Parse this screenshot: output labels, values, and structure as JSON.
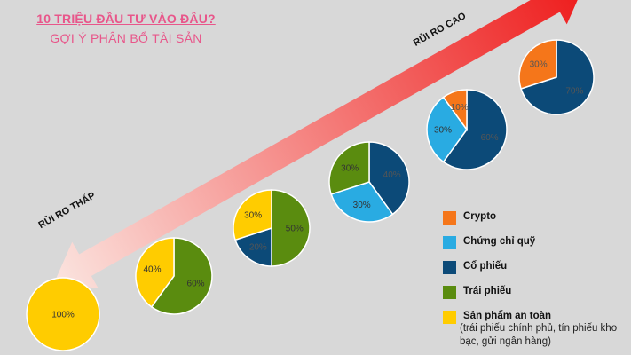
{
  "title": "10 TRIỆU ĐẦU TƯ VÀO ĐÂU?",
  "subtitle": "GỢI Ý PHÂN BỔ TÀI SẢN",
  "arrow": {
    "label_low": "RỦI RO THẤP",
    "label_high": "RỦI RO CAO",
    "color_low": "#fbe4df",
    "color_high": "#ee1b1b"
  },
  "colors": {
    "crypto": "#f5761a",
    "fund": "#29abe2",
    "stock": "#0c4a78",
    "bond": "#5a8c0f",
    "safe": "#ffcc00"
  },
  "legend": [
    {
      "key": "crypto",
      "label": "Crypto"
    },
    {
      "key": "fund",
      "label": "Chứng chỉ quỹ"
    },
    {
      "key": "stock",
      "label": "Cổ phiếu"
    },
    {
      "key": "bond",
      "label": "Trái phiếu"
    },
    {
      "key": "safe",
      "label": "Sản phẩm an toàn",
      "note": "(trái phiếu chính phủ, tín phiếu kho bạc, gửi ngân hàng)"
    }
  ],
  "chart_data": [
    {
      "type": "pie",
      "slices": [
        {
          "key": "safe",
          "value": 100,
          "label": "100%"
        }
      ]
    },
    {
      "type": "pie",
      "slices": [
        {
          "key": "bond",
          "value": 60,
          "label": "60%"
        },
        {
          "key": "safe",
          "value": 40,
          "label": "40%"
        }
      ]
    },
    {
      "type": "pie",
      "slices": [
        {
          "key": "bond",
          "value": 50,
          "label": "50%"
        },
        {
          "key": "stock",
          "value": 20,
          "label": "20%"
        },
        {
          "key": "safe",
          "value": 30,
          "label": "30%"
        }
      ]
    },
    {
      "type": "pie",
      "slices": [
        {
          "key": "stock",
          "value": 40,
          "label": "40%"
        },
        {
          "key": "fund",
          "value": 30,
          "label": "30%"
        },
        {
          "key": "bond",
          "value": 30,
          "label": "30%"
        }
      ]
    },
    {
      "type": "pie",
      "slices": [
        {
          "key": "stock",
          "value": 60,
          "label": "60%"
        },
        {
          "key": "fund",
          "value": 30,
          "label": "30%"
        },
        {
          "key": "crypto",
          "value": 10,
          "label": "10%"
        }
      ]
    },
    {
      "type": "pie",
      "slices": [
        {
          "key": "stock",
          "value": 70,
          "label": "70%"
        },
        {
          "key": "crypto",
          "value": 30,
          "label": "30%"
        }
      ]
    }
  ]
}
